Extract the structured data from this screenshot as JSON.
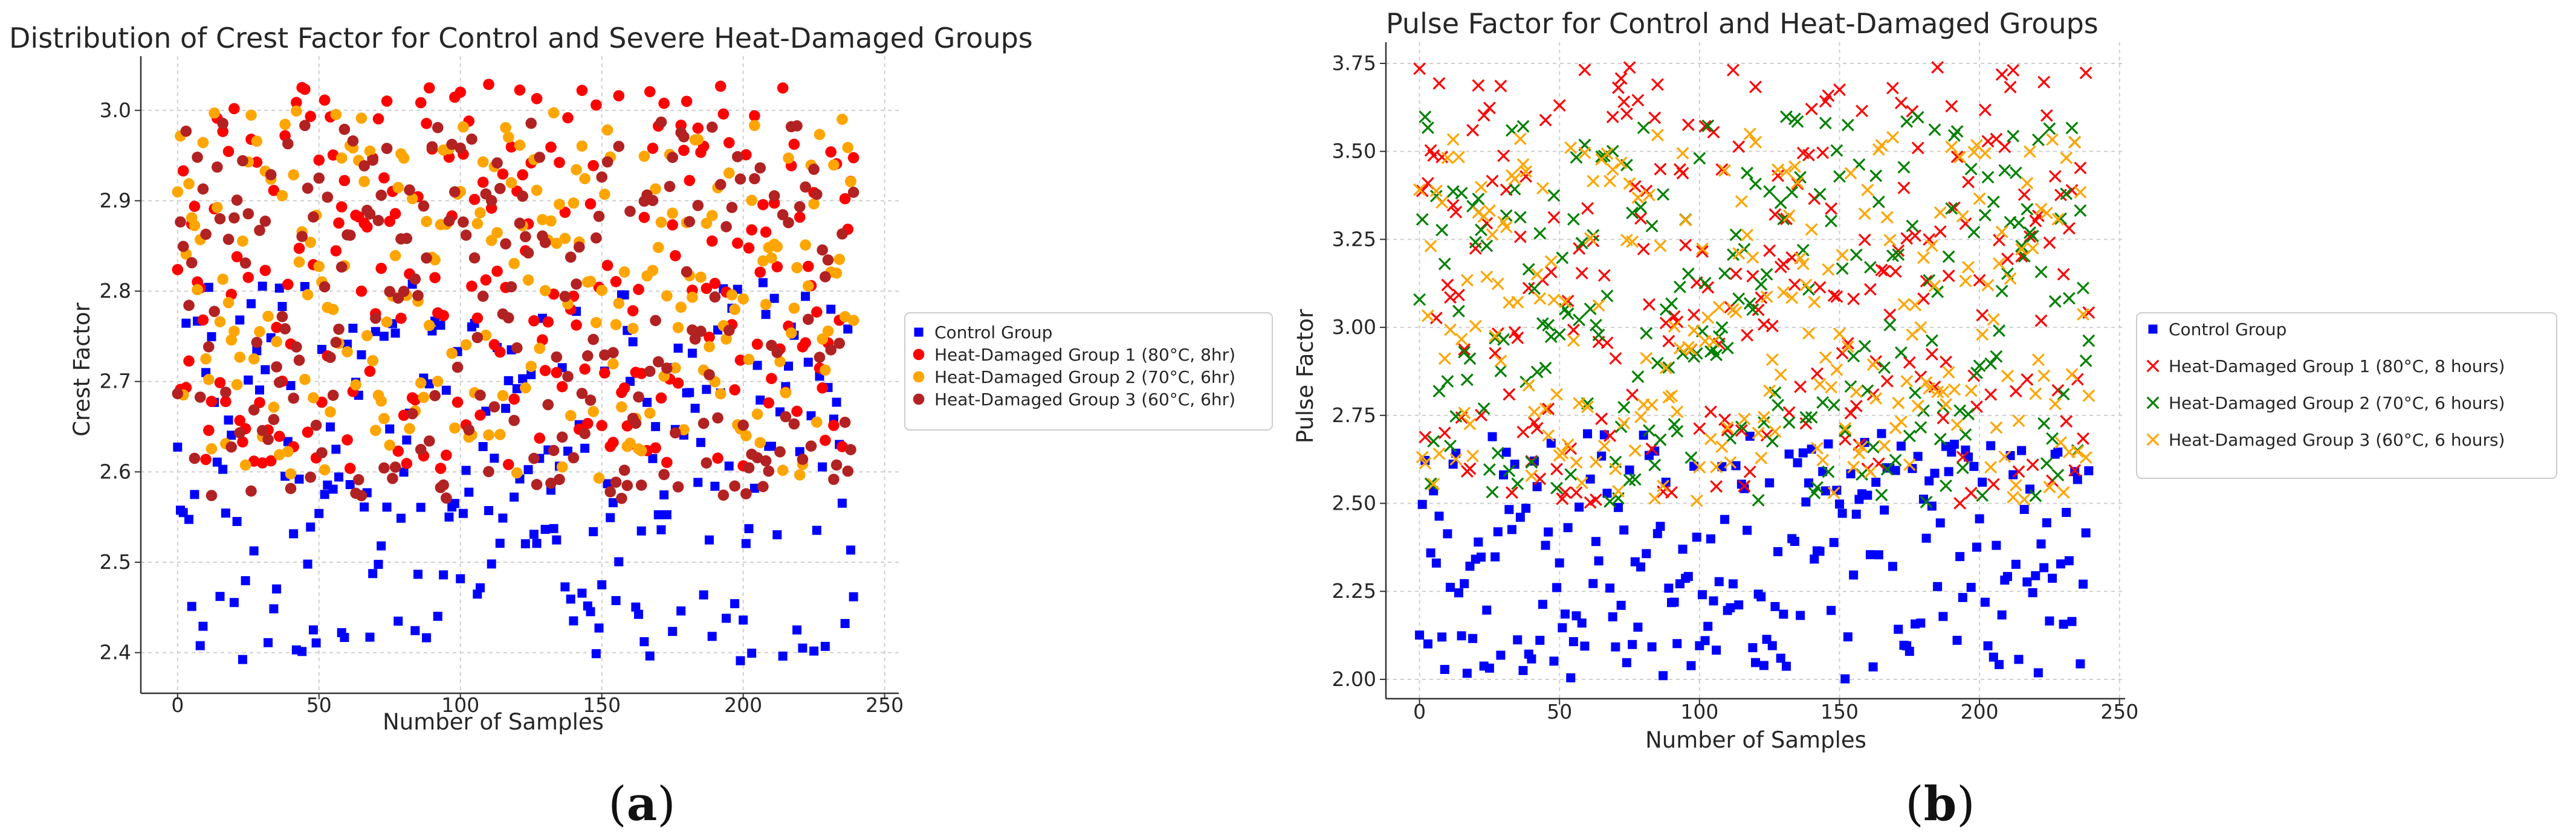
{
  "chart_data": [
    {
      "type": "scatter",
      "panel_label": "a",
      "title": "Distribution of Crest Factor for Control and Severe Heat-Damaged Groups",
      "xlabel": "Number of Samples",
      "ylabel": "Crest Factor",
      "xlim": [
        -13,
        255
      ],
      "ylim": [
        2.355,
        3.06
      ],
      "xticks": [
        0,
        50,
        100,
        150,
        200,
        250
      ],
      "yticks": [
        2.4,
        2.5,
        2.6,
        2.7,
        2.8,
        2.9,
        3.0
      ],
      "yticks_format": "{:.1f}",
      "grid": true,
      "legend_position": "right",
      "series": [
        {
          "name": "Control Group",
          "marker": "square",
          "color": "#0000ff",
          "n": 240,
          "range": [
            2.39,
            2.81
          ]
        },
        {
          "name": "Heat-Damaged Group 1 (80°C, 8hr)",
          "marker": "circle",
          "color": "#ff0000",
          "n": 240,
          "range": [
            2.6,
            3.03
          ]
        },
        {
          "name": "Heat-Damaged Group 2 (70°C, 6hr)",
          "marker": "circle",
          "color": "#ffa500",
          "n": 240,
          "range": [
            2.59,
            3.0
          ]
        },
        {
          "name": "Heat-Damaged Group 3 (60°C, 6hr)",
          "marker": "circle",
          "color": "#b22222",
          "n": 240,
          "range": [
            2.57,
            2.99
          ]
        }
      ]
    },
    {
      "type": "scatter",
      "panel_label": "b",
      "title": "Pulse Factor for Control and Heat-Damaged Groups",
      "xlabel": "Number of Samples",
      "ylabel": "Pulse Factor",
      "xlim": [
        -12,
        252
      ],
      "ylim": [
        1.945,
        3.81
      ],
      "xticks": [
        0,
        50,
        100,
        150,
        200,
        250
      ],
      "yticks": [
        2.0,
        2.25,
        2.5,
        2.75,
        3.0,
        3.25,
        3.5,
        3.75
      ],
      "yticks_format": "{:.2f}",
      "grid": true,
      "legend_position": "right",
      "series": [
        {
          "name": "Control Group",
          "marker": "square",
          "color": "#0000ff",
          "n": 240,
          "range": [
            2.0,
            2.7
          ]
        },
        {
          "name": "Heat-Damaged Group 1 (80°C, 8 hours)",
          "marker": "x",
          "color": "#ff0000",
          "n": 240,
          "range": [
            2.5,
            3.75
          ]
        },
        {
          "name": "Heat-Damaged Group 2 (70°C, 6 hours)",
          "marker": "x",
          "color": "#008000",
          "n": 240,
          "range": [
            2.5,
            3.6
          ]
        },
        {
          "name": "Heat-Damaged Group 3 (60°C, 6 hours)",
          "marker": "x",
          "color": "#ffa500",
          "n": 240,
          "range": [
            2.5,
            3.55
          ]
        }
      ]
    }
  ],
  "captions": [
    "(a)",
    "(b)"
  ]
}
